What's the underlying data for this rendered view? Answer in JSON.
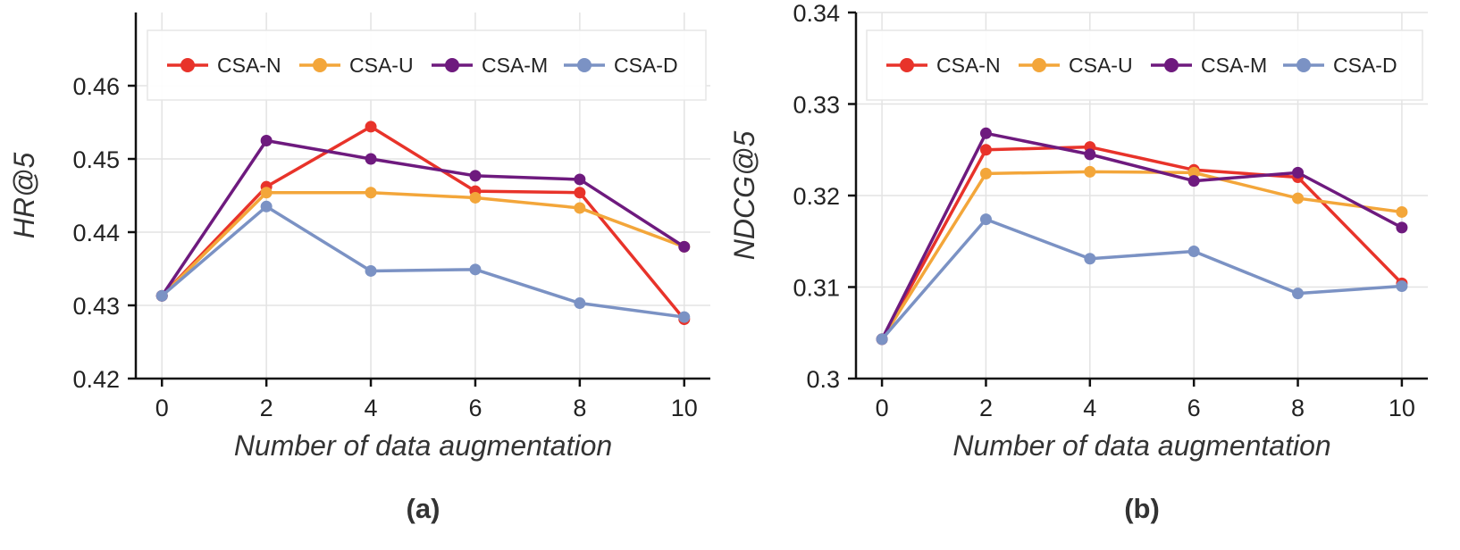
{
  "chart_data": [
    {
      "id": "a",
      "type": "line",
      "caption": "(a)",
      "xlabel": "Number of data augmentation",
      "ylabel": "HR@5",
      "x": [
        0,
        2,
        4,
        6,
        8,
        10
      ],
      "xticks": [
        "0",
        "2",
        "4",
        "6",
        "8",
        "10"
      ],
      "xlim": [
        -0.5,
        10.5
      ],
      "ylim": [
        0.42,
        0.47
      ],
      "yticks": [
        "0.42",
        "0.43",
        "0.44",
        "0.45",
        "0.46"
      ],
      "grid": true,
      "legend_position": "top",
      "series": [
        {
          "name": "CSA-N",
          "color": "#e8332a",
          "values": [
            0.4313,
            0.4462,
            0.4544,
            0.4456,
            0.4454,
            0.4281
          ]
        },
        {
          "name": "CSA-U",
          "color": "#f3a63a",
          "values": [
            0.4313,
            0.4454,
            0.4454,
            0.4447,
            0.4433,
            0.438
          ]
        },
        {
          "name": "CSA-M",
          "color": "#6e1a7e",
          "values": [
            0.4313,
            0.4525,
            0.45,
            0.4477,
            0.4472,
            0.438
          ]
        },
        {
          "name": "CSA-D",
          "color": "#7b92c4",
          "values": [
            0.4313,
            0.4435,
            0.4347,
            0.4349,
            0.4303,
            0.4284
          ]
        }
      ]
    },
    {
      "id": "b",
      "type": "line",
      "caption": "(b)",
      "xlabel": "Number of data augmentation",
      "ylabel": "NDCG@5",
      "x": [
        0,
        2,
        4,
        6,
        8,
        10
      ],
      "xticks": [
        "0",
        "2",
        "4",
        "6",
        "8",
        "10"
      ],
      "xlim": [
        -0.5,
        10.5
      ],
      "ylim": [
        0.3,
        0.34
      ],
      "yticks": [
        "0.3",
        "0.31",
        "0.32",
        "0.33",
        "0.34"
      ],
      "grid": true,
      "legend_position": "top",
      "series": [
        {
          "name": "CSA-N",
          "color": "#e8332a",
          "values": [
            0.3043,
            0.325,
            0.3253,
            0.3228,
            0.322,
            0.3104
          ]
        },
        {
          "name": "CSA-U",
          "color": "#f3a63a",
          "values": [
            0.3043,
            0.3224,
            0.3226,
            0.3225,
            0.3197,
            0.3182
          ]
        },
        {
          "name": "CSA-M",
          "color": "#6e1a7e",
          "values": [
            0.3043,
            0.3268,
            0.3245,
            0.3216,
            0.3225,
            0.3165
          ]
        },
        {
          "name": "CSA-D",
          "color": "#7b92c4",
          "values": [
            0.3043,
            0.3174,
            0.3131,
            0.3139,
            0.3093,
            0.3101
          ]
        }
      ]
    }
  ]
}
